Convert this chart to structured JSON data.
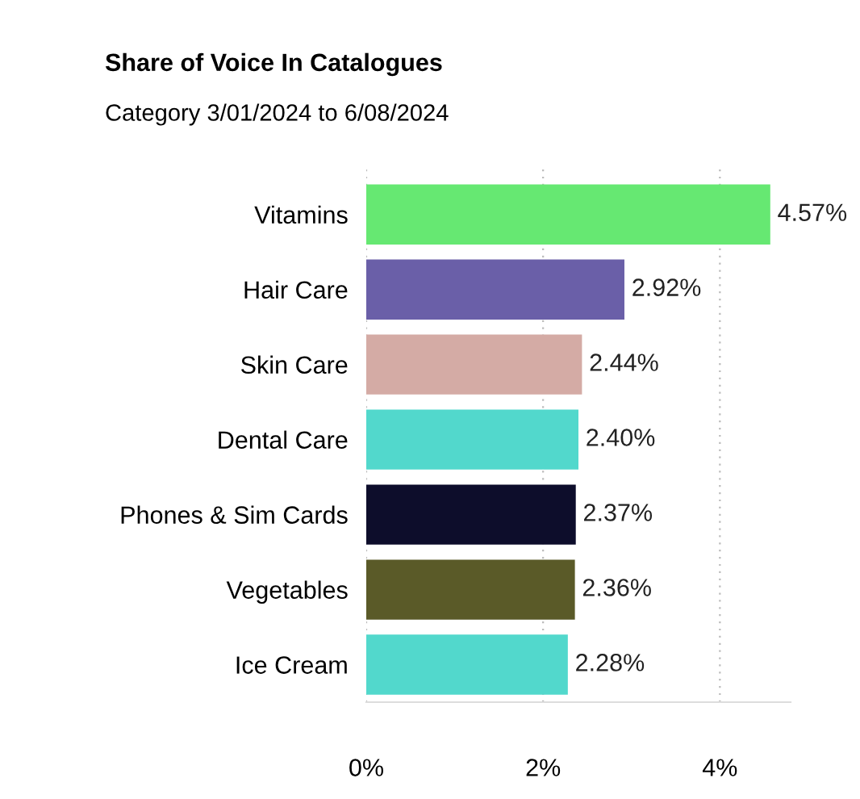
{
  "chart_data": {
    "type": "bar",
    "orientation": "horizontal",
    "title": "Share of Voice In Catalogues",
    "subtitle": "Category 3/01/2024 to 6/08/2024",
    "categories": [
      "Vitamins",
      "Hair Care",
      "Skin Care",
      "Dental Care",
      "Phones & Sim Cards",
      "Vegetables",
      "Ice Cream"
    ],
    "values": [
      4.57,
      2.92,
      2.44,
      2.4,
      2.37,
      2.36,
      2.28
    ],
    "colors": [
      "#66e872",
      "#6a5fa8",
      "#d4aba5",
      "#52d8cc",
      "#0d0d2b",
      "#5a5a28",
      "#52d8cc"
    ],
    "value_labels": [
      "4.57%",
      "2.92%",
      "2.44%",
      "2.40%",
      "2.37%",
      "2.36%",
      "2.28%"
    ],
    "xlim": [
      0,
      4.8
    ],
    "xticks": [
      {
        "value": 0,
        "label": "0%"
      },
      {
        "value": 2,
        "label": "2%"
      },
      {
        "value": 4,
        "label": "4%"
      }
    ],
    "grid": "x"
  }
}
